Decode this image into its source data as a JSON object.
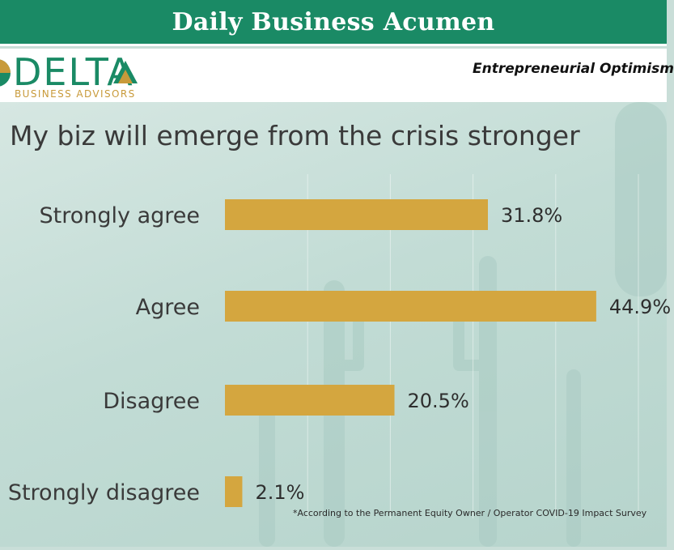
{
  "header": {
    "title": "Daily Business Acumen"
  },
  "brand": {
    "logo_word": "DELTA",
    "logo_tagline": "BUSINESS ADVISORS"
  },
  "subtitle": "Entrepreneurial Optimism",
  "colors": {
    "header_green": "#1a8a65",
    "bar_gold": "#d4a63f",
    "text_dark": "#3a3a3a"
  },
  "footnote": "*According to the Permanent Equity Owner / Operator COVID-19 Impact Survey",
  "chart_data": {
    "type": "bar",
    "orientation": "horizontal",
    "title": "My biz will emerge from the crisis stronger",
    "categories": [
      "Strongly agree",
      "Agree",
      "Disagree",
      "Strongly disagree"
    ],
    "values": [
      31.8,
      44.9,
      20.5,
      2.1
    ],
    "value_labels": [
      "31.8%",
      "44.9%",
      "20.5%",
      "2.1%"
    ],
    "xlim": [
      0,
      50
    ],
    "grid": true,
    "legend": "none"
  }
}
